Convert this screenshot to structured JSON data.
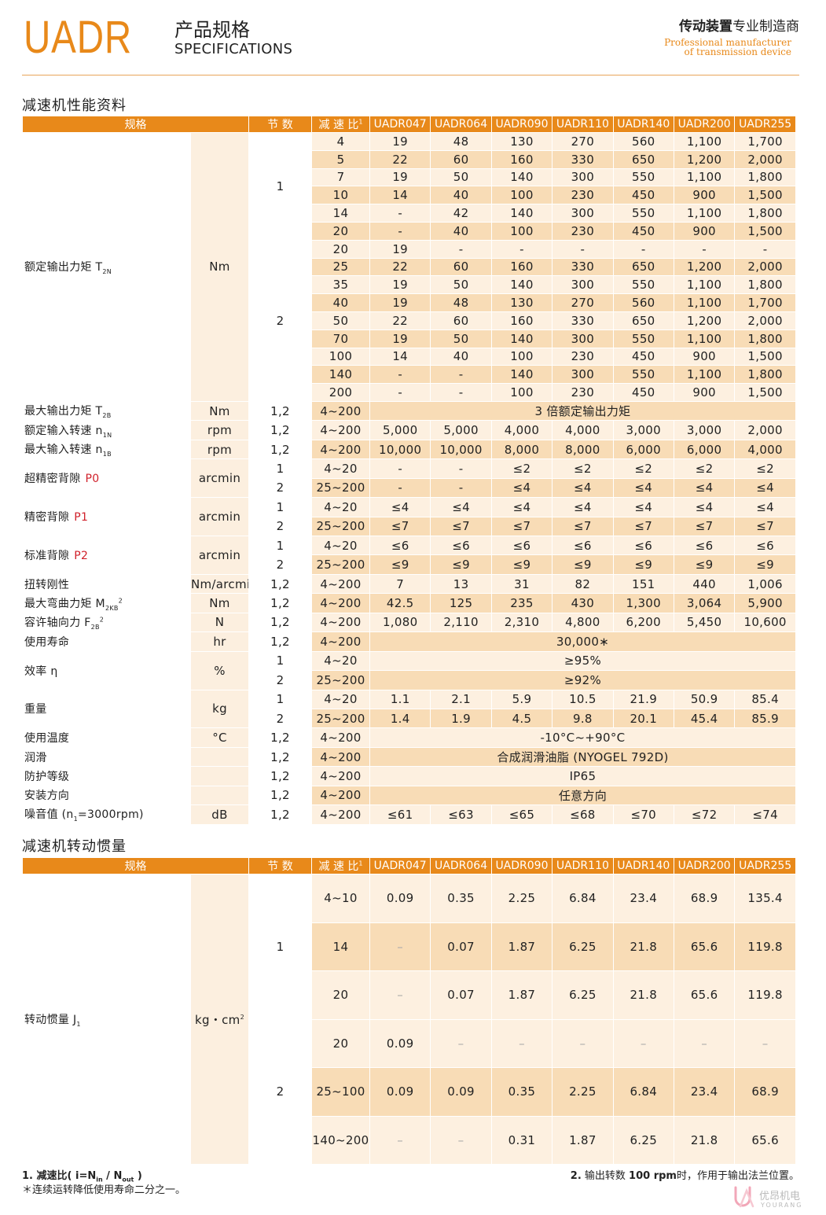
{
  "header": {
    "brand": "UADR",
    "title_cn": "产品规格",
    "title_en": "SPECIFICATIONS",
    "slogan_bold": "传动装置",
    "slogan": "专业制造商",
    "tagline_line1": "Professional manufacturer",
    "tagline_line2": "of transmission device"
  },
  "tables": [
    {
      "title": "减速机性能资料",
      "header": {
        "spec": "规格",
        "stage": "节 数",
        "ratio": "减 速 比",
        "ratio_sup": "1",
        "models": [
          "UADR047",
          "UADR064",
          "UADR090",
          "UADR110",
          "UADR140",
          "UADR200",
          "UADR255"
        ]
      },
      "groups": [
        {
          "name": {
            "text": "额定输出力矩 T",
            "sub": "2N"
          },
          "unit": "Nm",
          "stages": [
            {
              "stage": "1",
              "rows": [
                {
                  "ratio": "4",
                  "values": [
                    "19",
                    "48",
                    "130",
                    "270",
                    "560",
                    "1,100",
                    "1,700"
                  ]
                },
                {
                  "ratio": "5",
                  "values": [
                    "22",
                    "60",
                    "160",
                    "330",
                    "650",
                    "1,200",
                    "2,000"
                  ]
                },
                {
                  "ratio": "7",
                  "values": [
                    "19",
                    "50",
                    "140",
                    "300",
                    "550",
                    "1,100",
                    "1,800"
                  ]
                },
                {
                  "ratio": "10",
                  "values": [
                    "14",
                    "40",
                    "100",
                    "230",
                    "450",
                    "900",
                    "1,500"
                  ]
                },
                {
                  "ratio": "14",
                  "values": [
                    "-",
                    "42",
                    "140",
                    "300",
                    "550",
                    "1,100",
                    "1,800"
                  ]
                },
                {
                  "ratio": "20",
                  "values": [
                    "-",
                    "40",
                    "100",
                    "230",
                    "450",
                    "900",
                    "1,500"
                  ]
                }
              ]
            },
            {
              "stage": "2",
              "rows": [
                {
                  "ratio": "20",
                  "values": [
                    "19",
                    "-",
                    "-",
                    "-",
                    "-",
                    "-",
                    "-"
                  ]
                },
                {
                  "ratio": "25",
                  "values": [
                    "22",
                    "60",
                    "160",
                    "330",
                    "650",
                    "1,200",
                    "2,000"
                  ]
                },
                {
                  "ratio": "35",
                  "values": [
                    "19",
                    "50",
                    "140",
                    "300",
                    "550",
                    "1,100",
                    "1,800"
                  ]
                },
                {
                  "ratio": "40",
                  "values": [
                    "19",
                    "48",
                    "130",
                    "270",
                    "560",
                    "1,100",
                    "1,700"
                  ]
                },
                {
                  "ratio": "50",
                  "values": [
                    "22",
                    "60",
                    "160",
                    "330",
                    "650",
                    "1,200",
                    "2,000"
                  ]
                },
                {
                  "ratio": "70",
                  "values": [
                    "19",
                    "50",
                    "140",
                    "300",
                    "550",
                    "1,100",
                    "1,800"
                  ]
                },
                {
                  "ratio": "100",
                  "values": [
                    "14",
                    "40",
                    "100",
                    "230",
                    "450",
                    "900",
                    "1,500"
                  ]
                },
                {
                  "ratio": "140",
                  "values": [
                    "-",
                    "-",
                    "140",
                    "300",
                    "550",
                    "1,100",
                    "1,800"
                  ]
                },
                {
                  "ratio": "200",
                  "values": [
                    "-",
                    "-",
                    "100",
                    "230",
                    "450",
                    "900",
                    "1,500"
                  ]
                }
              ]
            }
          ]
        },
        {
          "name": {
            "text": "最大输出力矩 T",
            "sub": "2B"
          },
          "unit": "Nm",
          "stages": [
            {
              "stage": "1,2",
              "rows": [
                {
                  "ratio": "4~200",
                  "span": "3 倍额定输出力矩"
                }
              ]
            }
          ]
        },
        {
          "name": {
            "text": "额定输入转速 n",
            "sub": "1N"
          },
          "unit": "rpm",
          "stages": [
            {
              "stage": "1,2",
              "rows": [
                {
                  "ratio": "4~200",
                  "values": [
                    "5,000",
                    "5,000",
                    "4,000",
                    "4,000",
                    "3,000",
                    "3,000",
                    "2,000"
                  ]
                }
              ]
            }
          ]
        },
        {
          "name": {
            "text": "最大输入转速 n",
            "sub": "1B"
          },
          "unit": "rpm",
          "stages": [
            {
              "stage": "1,2",
              "rows": [
                {
                  "ratio": "4~200",
                  "values": [
                    "10,000",
                    "10,000",
                    "8,000",
                    "8,000",
                    "6,000",
                    "6,000",
                    "4,000"
                  ]
                }
              ]
            }
          ]
        },
        {
          "name": {
            "text": "超精密背隙",
            "code": "P0"
          },
          "unit": "arcmin",
          "stages": [
            {
              "stage": "1",
              "rows": [
                {
                  "ratio": "4~20",
                  "values": [
                    "-",
                    "-",
                    "≤2",
                    "≤2",
                    "≤2",
                    "≤2",
                    "≤2"
                  ]
                }
              ]
            },
            {
              "stage": "2",
              "rows": [
                {
                  "ratio": "25~200",
                  "values": [
                    "-",
                    "-",
                    "≤4",
                    "≤4",
                    "≤4",
                    "≤4",
                    "≤4"
                  ]
                }
              ]
            }
          ]
        },
        {
          "name": {
            "text": "精密背隙",
            "code": "P1"
          },
          "unit": "arcmin",
          "stages": [
            {
              "stage": "1",
              "rows": [
                {
                  "ratio": "4~20",
                  "values": [
                    "≤4",
                    "≤4",
                    "≤4",
                    "≤4",
                    "≤4",
                    "≤4",
                    "≤4"
                  ]
                }
              ]
            },
            {
              "stage": "2",
              "rows": [
                {
                  "ratio": "25~200",
                  "values": [
                    "≤7",
                    "≤7",
                    "≤7",
                    "≤7",
                    "≤7",
                    "≤7",
                    "≤7"
                  ]
                }
              ]
            }
          ]
        },
        {
          "name": {
            "text": "标准背隙",
            "code": "P2"
          },
          "unit": "arcmin",
          "stages": [
            {
              "stage": "1",
              "rows": [
                {
                  "ratio": "4~20",
                  "values": [
                    "≤6",
                    "≤6",
                    "≤6",
                    "≤6",
                    "≤6",
                    "≤6",
                    "≤6"
                  ]
                }
              ]
            },
            {
              "stage": "2",
              "rows": [
                {
                  "ratio": "25~200",
                  "values": [
                    "≤9",
                    "≤9",
                    "≤9",
                    "≤9",
                    "≤9",
                    "≤9",
                    "≤9"
                  ]
                }
              ]
            }
          ]
        },
        {
          "name": {
            "text": "扭转刚性"
          },
          "unit": "Nm/arcmin",
          "stages": [
            {
              "stage": "1,2",
              "rows": [
                {
                  "ratio": "4~200",
                  "values": [
                    "7",
                    "13",
                    "31",
                    "82",
                    "151",
                    "440",
                    "1,006"
                  ]
                }
              ]
            }
          ]
        },
        {
          "name": {
            "text": "最大弯曲力矩 M",
            "sub": "2KB",
            "sup": "2"
          },
          "unit": "Nm",
          "stages": [
            {
              "stage": "1,2",
              "rows": [
                {
                  "ratio": "4~200",
                  "values": [
                    "42.5",
                    "125",
                    "235",
                    "430",
                    "1,300",
                    "3,064",
                    "5,900"
                  ]
                }
              ]
            }
          ]
        },
        {
          "name": {
            "text": "容许轴向力 F",
            "sub": "2B",
            "sup": "2"
          },
          "unit": "N",
          "stages": [
            {
              "stage": "1,2",
              "rows": [
                {
                  "ratio": "4~200",
                  "values": [
                    "1,080",
                    "2,110",
                    "2,310",
                    "4,800",
                    "6,200",
                    "5,450",
                    "10,600"
                  ]
                }
              ]
            }
          ]
        },
        {
          "name": {
            "text": "使用寿命"
          },
          "unit": "hr",
          "stages": [
            {
              "stage": "1,2",
              "rows": [
                {
                  "ratio": "4~200",
                  "span": "30,000∗"
                }
              ]
            }
          ]
        },
        {
          "name": {
            "text": "效率 η"
          },
          "unit": "%",
          "stages": [
            {
              "stage": "1",
              "rows": [
                {
                  "ratio": "4~20",
                  "span": "≥95%"
                }
              ]
            },
            {
              "stage": "2",
              "rows": [
                {
                  "ratio": "25~200",
                  "span": "≥92%"
                }
              ]
            }
          ]
        },
        {
          "name": {
            "text": "重量"
          },
          "unit": "kg",
          "stages": [
            {
              "stage": "1",
              "rows": [
                {
                  "ratio": "4~20",
                  "values": [
                    "1.1",
                    "2.1",
                    "5.9",
                    "10.5",
                    "21.9",
                    "50.9",
                    "85.4"
                  ]
                }
              ]
            },
            {
              "stage": "2",
              "rows": [
                {
                  "ratio": "25~200",
                  "values": [
                    "1.4",
                    "1.9",
                    "4.5",
                    "9.8",
                    "20.1",
                    "45.4",
                    "85.9"
                  ]
                }
              ]
            }
          ]
        },
        {
          "name": {
            "text": "使用温度"
          },
          "unit": "°C",
          "stages": [
            {
              "stage": "1,2",
              "rows": [
                {
                  "ratio": "4~200",
                  "span": "-10°C~+90°C"
                }
              ]
            }
          ]
        },
        {
          "name": {
            "text": "润滑"
          },
          "stages": [
            {
              "stage": "1,2",
              "rows": [
                {
                  "ratio": "4~200",
                  "span": "合成润滑油脂 (NYOGEL 792D)"
                }
              ]
            }
          ]
        },
        {
          "name": {
            "text": "防护等级"
          },
          "stages": [
            {
              "stage": "1,2",
              "rows": [
                {
                  "ratio": "4~200",
                  "span": "IP65"
                }
              ]
            }
          ]
        },
        {
          "name": {
            "text": "安装方向"
          },
          "stages": [
            {
              "stage": "1,2",
              "rows": [
                {
                  "ratio": "4~200",
                  "span": "任意方向"
                }
              ]
            }
          ]
        },
        {
          "name": {
            "text": "噪音值 (n",
            "sub": "1",
            "tail": "=3000rpm)"
          },
          "unit": "dB",
          "stages": [
            {
              "stage": "1,2",
              "rows": [
                {
                  "ratio": "4~200",
                  "values": [
                    "≤61",
                    "≤63",
                    "≤65",
                    "≤68",
                    "≤70",
                    "≤72",
                    "≤74"
                  ]
                }
              ]
            }
          ]
        }
      ]
    },
    {
      "title": "减速机转动惯量",
      "header": {
        "spec": "规格",
        "stage": "节 数",
        "ratio": "减 速 比",
        "ratio_sup": "1",
        "models": [
          "UADR047",
          "UADR064",
          "UADR090",
          "UADR110",
          "UADR140",
          "UADR200",
          "UADR255"
        ]
      },
      "groups": [
        {
          "name": {
            "text": "转动惯量 J",
            "sub": "1"
          },
          "unit": {
            "text": "kg・cm",
            "sup": "2"
          },
          "stages": [
            {
              "stage": "1",
              "rows": [
                {
                  "ratio": "4~10",
                  "values": [
                    "0.09",
                    "0.35",
                    "2.25",
                    "6.84",
                    "23.4",
                    "68.9",
                    "135.4"
                  ]
                },
                {
                  "ratio": "14",
                  "values": [
                    "–",
                    "0.07",
                    "1.87",
                    "6.25",
                    "21.8",
                    "65.6",
                    "119.8"
                  ]
                },
                {
                  "ratio": "20",
                  "values": [
                    "–",
                    "0.07",
                    "1.87",
                    "6.25",
                    "21.8",
                    "65.6",
                    "119.8"
                  ]
                }
              ]
            },
            {
              "stage": "2",
              "rows": [
                {
                  "ratio": "20",
                  "values": [
                    "0.09",
                    "–",
                    "–",
                    "–",
                    "–",
                    "–",
                    "–"
                  ]
                },
                {
                  "ratio": "25~100",
                  "values": [
                    "0.09",
                    "0.09",
                    "0.35",
                    "2.25",
                    "6.84",
                    "23.4",
                    "68.9"
                  ]
                },
                {
                  "ratio": "140~200",
                  "values": [
                    "–",
                    "–",
                    "0.31",
                    "1.87",
                    "6.25",
                    "21.8",
                    "65.6"
                  ]
                }
              ]
            }
          ]
        }
      ]
    }
  ],
  "footnotes": {
    "note1": {
      "num": "1.",
      "text": "减速比( i=N",
      "sub1": "in",
      "mid": " / N",
      "sub2": "out",
      "end": " )"
    },
    "note_star": "＊连续运转降低使用寿命二分之一。",
    "note2": {
      "num": "2.",
      "a": "输出转数 ",
      "b": "100 rpm",
      "c": "时，作用于输出法兰位置。"
    }
  },
  "logo": {
    "name": "优昂机电",
    "latin": "YOURANG"
  }
}
